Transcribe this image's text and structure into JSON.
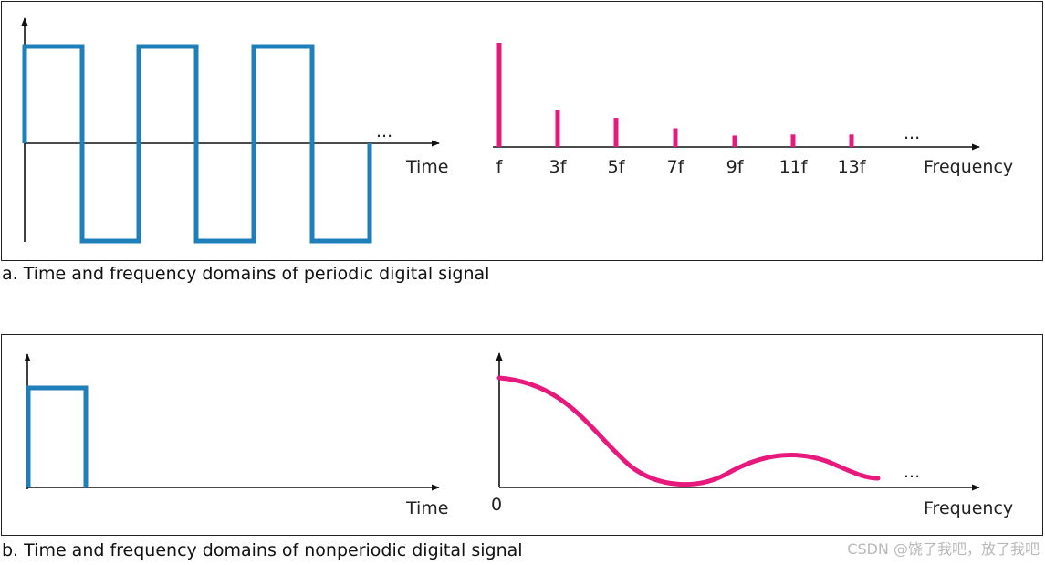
{
  "colors": {
    "time_signal": "#1f7fb8",
    "spectrum": "#e8197d",
    "axis": "#111111"
  },
  "panel_a": {
    "caption": "a. Time and frequency domains of periodic digital signal",
    "time_axis_label": "Time",
    "frequency_axis_label": "Frequency",
    "continuation": "...",
    "harmonics": [
      {
        "label": "f",
        "relative_amplitude": 1.0
      },
      {
        "label": "3f",
        "relative_amplitude": 0.36
      },
      {
        "label": "5f",
        "relative_amplitude": 0.28
      },
      {
        "label": "7f",
        "relative_amplitude": 0.18
      },
      {
        "label": "9f",
        "relative_amplitude": 0.11
      },
      {
        "label": "11f",
        "relative_amplitude": 0.12
      },
      {
        "label": "13f",
        "relative_amplitude": 0.12
      }
    ]
  },
  "panel_b": {
    "caption": "b. Time and frequency domains of nonperiodic digital signal",
    "time_axis_label": "Time",
    "frequency_axis_label": "Frequency",
    "origin_label": "0",
    "continuation": "..."
  },
  "watermark": "CSDN @饶了我吧，放了我吧"
}
